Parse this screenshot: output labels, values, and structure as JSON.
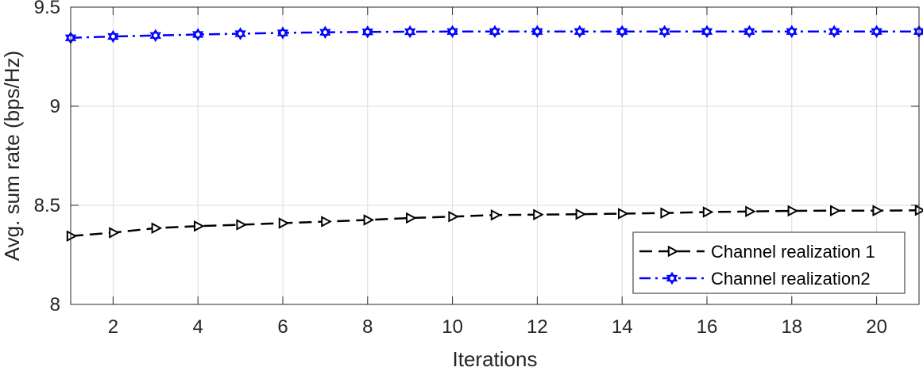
{
  "chart_data": {
    "type": "line",
    "xlabel": "Iterations",
    "ylabel": "Avg. sum rate (bps/Hz)",
    "xlim": [
      1,
      21
    ],
    "ylim": [
      8,
      9.5
    ],
    "xticks": [
      2,
      4,
      6,
      8,
      10,
      12,
      14,
      16,
      18,
      20
    ],
    "yticks": [
      8,
      8.5,
      9,
      9.5
    ],
    "grid": true,
    "legend_position": "bottom-right",
    "x": [
      1,
      2,
      3,
      4,
      5,
      6,
      7,
      8,
      9,
      10,
      11,
      12,
      13,
      14,
      15,
      16,
      17,
      18,
      19,
      20,
      21
    ],
    "series": [
      {
        "name": "Channel realization 1",
        "color": "#000000",
        "line_style": "dashed",
        "marker": "triangle-right",
        "values": [
          8.345,
          8.362,
          8.385,
          8.395,
          8.402,
          8.41,
          8.418,
          8.426,
          8.436,
          8.443,
          8.451,
          8.453,
          8.455,
          8.458,
          8.461,
          8.466,
          8.469,
          8.472,
          8.473,
          8.473,
          8.475
        ]
      },
      {
        "name": "Channel realization2",
        "color": "#0000ff",
        "line_style": "dash-dot",
        "marker": "hexagram",
        "values": [
          9.345,
          9.352,
          9.357,
          9.362,
          9.366,
          9.37,
          9.373,
          9.375,
          9.376,
          9.377,
          9.377,
          9.377,
          9.377,
          9.377,
          9.377,
          9.377,
          9.377,
          9.377,
          9.377,
          9.377,
          9.377
        ]
      }
    ]
  }
}
